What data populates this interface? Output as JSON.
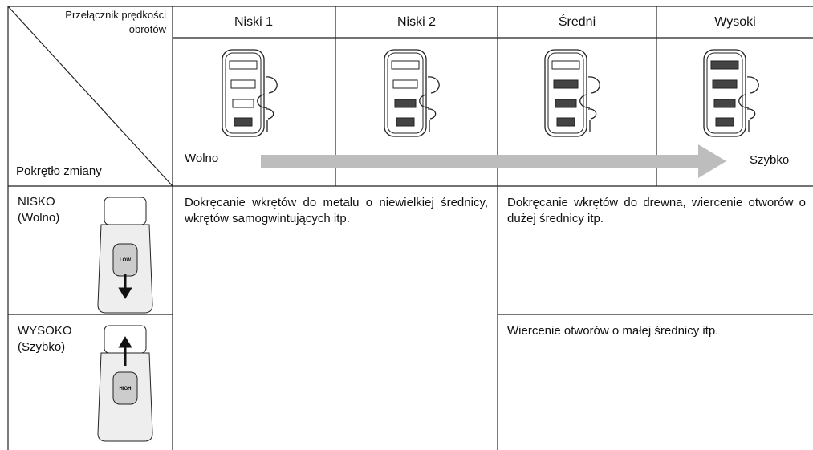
{
  "header": {
    "speed_switch_label": [
      "Przełącznik prędkości",
      "obrotów"
    ],
    "dial_label": "Pokrętło zmiany",
    "columns": [
      "Niski 1",
      "Niski 2",
      "Średni",
      "Wysoki"
    ],
    "slow": "Wolno",
    "fast": "Szybko"
  },
  "rows": [
    {
      "label": [
        "NISKO",
        "(Wolno)"
      ],
      "switch_label": "LOW"
    },
    {
      "label": [
        "WYSOKO",
        "(Szybko)"
      ],
      "switch_label": "HIGH"
    }
  ],
  "descriptions": {
    "low_speeds": "Dokręcanie wkrętów do metalu o niewielkiej średnicy, wkrętów samogwintujących itp.",
    "high_speeds_low": "Dokręcanie wkrętów do drewna, wiercenie otworów o dużej średnicy itp.",
    "high_speeds_high": "Wiercenie otworów o małej średnicy itp."
  }
}
